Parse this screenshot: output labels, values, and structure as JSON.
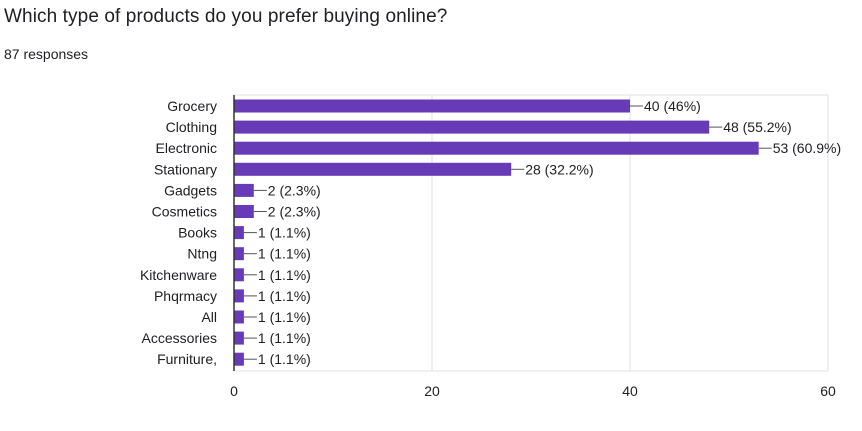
{
  "question": {
    "title": "Which type of products do you prefer buying online?",
    "responses": "87 responses"
  },
  "colors": {
    "bar": "#673ab7",
    "grid": "#e0e0e0",
    "axis": "#333333",
    "text": "#202124"
  },
  "chart_data": {
    "type": "bar",
    "orientation": "horizontal",
    "categories": [
      "Grocery",
      "Clothing",
      "Electronic",
      "Stationary",
      "Gadgets",
      "Cosmetics",
      "Books",
      "Ntng",
      "Kitchenware",
      "Phqrmacy",
      "All",
      "Accessories",
      "Furniture,"
    ],
    "values": [
      40,
      48,
      53,
      28,
      2,
      2,
      1,
      1,
      1,
      1,
      1,
      1,
      1
    ],
    "data_labels": [
      "40 (46%)",
      "48 (55.2%)",
      "53 (60.9%)",
      "28 (32.2%)",
      "2 (2.3%)",
      "2 (2.3%)",
      "1 (1.1%)",
      "1 (1.1%)",
      "1 (1.1%)",
      "1 (1.1%)",
      "1 (1.1%)",
      "1 (1.1%)",
      "1 (1.1%)"
    ],
    "xlim": [
      0,
      60
    ],
    "xticks": [
      "0",
      "20",
      "40",
      "60"
    ],
    "grid": true,
    "title": "",
    "xlabel": "",
    "ylabel": ""
  }
}
